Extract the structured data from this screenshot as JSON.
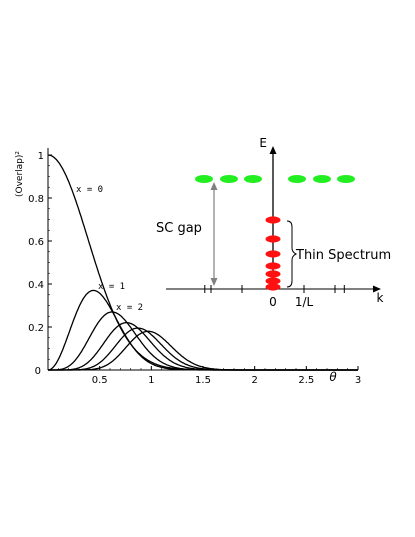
{
  "chart_data": [
    {
      "type": "line",
      "title": "",
      "xlabel": "θ",
      "ylabel": "(Overlap)²",
      "xlim": [
        0,
        3
      ],
      "ylim": [
        0,
        1
      ],
      "x_ticks": [
        "0.5",
        "1",
        "1.5",
        "2",
        "2.5",
        "3"
      ],
      "y_ticks": [
        "0",
        "0.2",
        "0.4",
        "0.6",
        "0.8",
        "1"
      ],
      "origin_label": "0",
      "grid": false,
      "series_style": {
        "color": "#000000"
      },
      "series": [
        {
          "label": "x = 0",
          "peak_x": 0.0,
          "peak_y": 1.0
        },
        {
          "label": "x = 1",
          "peak_x": 0.44,
          "peak_y": 0.37
        },
        {
          "label": "x = 2",
          "peak_x": 0.62,
          "peak_y": 0.27
        },
        {
          "label": "",
          "peak_x": 0.76,
          "peak_y": 0.22
        },
        {
          "label": "",
          "peak_x": 0.87,
          "peak_y": 0.195
        },
        {
          "label": "",
          "peak_x": 0.97,
          "peak_y": 0.18
        }
      ]
    },
    {
      "type": "scatter",
      "title": "",
      "xlabel": "k",
      "ylabel": "E",
      "x_tick_labels": [
        "0",
        "1/L"
      ],
      "gap_label": "SC gap",
      "bracket_label": "Thin Spectrum",
      "colors": {
        "continuum": "#22ee22",
        "thin_spectrum": "#ff1111",
        "gap_arrow": "#808080"
      },
      "continuum_levels": {
        "energy": 1.0,
        "k": [
          -3,
          -2,
          -1,
          1,
          2,
          3
        ]
      },
      "thin_spectrum_levels": {
        "k": 0,
        "energy": [
          0.03,
          0.07,
          0.13,
          0.21,
          0.32,
          0.46,
          0.63
        ]
      }
    }
  ]
}
